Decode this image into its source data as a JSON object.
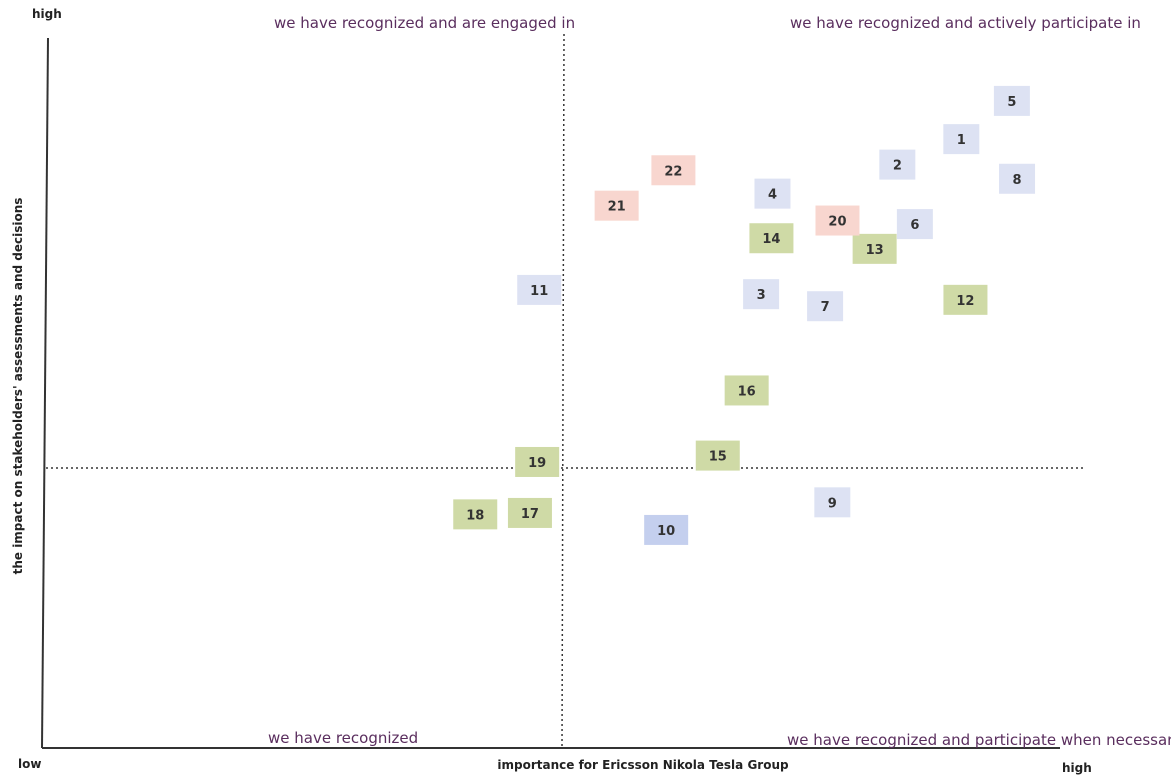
{
  "chart_data": {
    "type": "scatter",
    "xlabel": "importance for Ericsson Nikola Tesla Group",
    "ylabel": "the impact on stakeholders' assessments and decisions",
    "x_low_label": "low",
    "x_high_label": "high",
    "y_high_label": "high",
    "grid": false,
    "quadrant_labels": {
      "top_left": "we have recognized and are engaged in",
      "top_right": "we have recognized and actively participate in",
      "bottom_left": "we have recognized",
      "bottom_right": "we have recognized and participate when necessary"
    },
    "categories": {
      "blue": "#dde2f3",
      "blue_dark": "#c4cfee",
      "green": "#cfdaa6",
      "red": "#f8d6cf"
    },
    "points": [
      {
        "label": "1",
        "x": 0.885,
        "y": 0.86,
        "category": "blue"
      },
      {
        "label": "2",
        "x": 0.823,
        "y": 0.824,
        "category": "blue"
      },
      {
        "label": "3",
        "x": 0.691,
        "y": 0.641,
        "category": "blue"
      },
      {
        "label": "4",
        "x": 0.702,
        "y": 0.783,
        "category": "blue"
      },
      {
        "label": "5",
        "x": 0.934,
        "y": 0.914,
        "category": "blue"
      },
      {
        "label": "6",
        "x": 0.84,
        "y": 0.74,
        "category": "blue"
      },
      {
        "label": "7",
        "x": 0.753,
        "y": 0.624,
        "category": "blue"
      },
      {
        "label": "8",
        "x": 0.939,
        "y": 0.804,
        "category": "blue"
      },
      {
        "label": "9",
        "x": 0.76,
        "y": 0.347,
        "category": "blue"
      },
      {
        "label": "10",
        "x": 0.599,
        "y": 0.308,
        "category": "blue_dark"
      },
      {
        "label": "11",
        "x": 0.476,
        "y": 0.647,
        "category": "blue"
      },
      {
        "label": "12",
        "x": 0.889,
        "y": 0.633,
        "category": "green"
      },
      {
        "label": "13",
        "x": 0.801,
        "y": 0.705,
        "category": "green"
      },
      {
        "label": "14",
        "x": 0.701,
        "y": 0.72,
        "category": "green"
      },
      {
        "label": "15",
        "x": 0.649,
        "y": 0.413,
        "category": "green"
      },
      {
        "label": "16",
        "x": 0.677,
        "y": 0.505,
        "category": "green"
      },
      {
        "label": "17",
        "x": 0.467,
        "y": 0.332,
        "category": "green"
      },
      {
        "label": "18",
        "x": 0.414,
        "y": 0.33,
        "category": "green"
      },
      {
        "label": "19",
        "x": 0.474,
        "y": 0.404,
        "category": "green"
      },
      {
        "label": "20",
        "x": 0.765,
        "y": 0.745,
        "category": "red"
      },
      {
        "label": "21",
        "x": 0.551,
        "y": 0.766,
        "category": "red"
      },
      {
        "label": "22",
        "x": 0.606,
        "y": 0.816,
        "category": "red"
      }
    ]
  }
}
